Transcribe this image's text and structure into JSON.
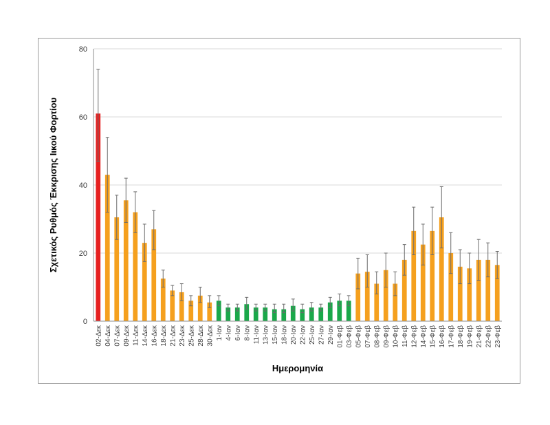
{
  "chart_data": {
    "type": "bar",
    "xlabel": "Ημερομηνία",
    "ylabel": "Σχετικός Ρυθμός Έκκρισης Ιικού Φορτίου",
    "ylim": [
      0,
      80
    ],
    "yticks": [
      0,
      20,
      40,
      60,
      80
    ],
    "grid": true,
    "legend": "none",
    "colors": {
      "red": "#e62020",
      "orange": "#f5a01e",
      "green": "#1aa84a"
    },
    "categories": [
      "02-Δεκ",
      "04-Δεκ",
      "07-Δεκ",
      "09-Δεκ",
      "11-Δεκ",
      "14-Δεκ",
      "16-Δεκ",
      "18-Δεκ",
      "21-Δεκ",
      "23-Δεκ",
      "25-Δεκ",
      "28-Δεκ",
      "30-Δεκ",
      "1-Ιαν",
      "4-Ιαν",
      "6-Ιαν",
      "8-Ιαν",
      "11-Ιαν",
      "13-Ιαν",
      "15-Ιαν",
      "18-Ιαν",
      "20-Ιαν",
      "22-Ιαν",
      "25-Ιαν",
      "27-Ιαν",
      "29-Ιαν",
      "01-Φεβ",
      "03-Φεβ",
      "05-Φεβ",
      "07-Φεβ",
      "08-Φεβ",
      "09-Φεβ",
      "10-Φεβ",
      "11-Φεβ",
      "12-Φεβ",
      "14-Φεβ",
      "15-Φεβ",
      "16-Φεβ",
      "17-Φεβ",
      "18-Φεβ",
      "19-Φεβ",
      "21-Φεβ",
      "22-Φεβ",
      "23-Φεβ"
    ],
    "values": [
      61,
      43,
      30.5,
      35.5,
      32,
      23,
      27,
      12.5,
      9,
      8.5,
      6,
      7.5,
      5.5,
      6,
      4,
      4,
      5,
      4,
      4,
      3.5,
      3.5,
      4.5,
      3.5,
      4,
      4,
      5.5,
      6,
      6,
      14,
      14.5,
      11,
      15,
      11,
      18,
      26.5,
      22.5,
      26.5,
      30.5,
      20,
      16,
      15.5,
      18,
      18,
      16.5
    ],
    "error_high": [
      74,
      54,
      37,
      42,
      38,
      28.5,
      32.5,
      15,
      10.5,
      11,
      7.5,
      10,
      7.5,
      7.5,
      5,
      5,
      7,
      5,
      5,
      5,
      5,
      6.5,
      5,
      5.5,
      5,
      7,
      8,
      7.5,
      18.5,
      19.5,
      14.5,
      20,
      14.5,
      22.5,
      33.5,
      28.5,
      33.5,
      39.5,
      26,
      21,
      20,
      24,
      23,
      20.5
    ],
    "error_low": [
      47,
      32,
      24,
      29,
      26,
      17.5,
      21,
      10,
      7.5,
      6,
      4.5,
      5.5,
      4,
      4.5,
      3,
      3,
      3.5,
      3,
      3,
      2.5,
      2.5,
      3,
      2.5,
      3,
      3,
      4,
      4.5,
      4.5,
      9.5,
      10,
      8,
      10,
      7.5,
      13.5,
      19.5,
      16.5,
      19.5,
      21.5,
      14,
      11,
      11,
      12,
      13,
      12.5
    ],
    "bar_colors": [
      "red",
      "orange",
      "orange",
      "orange",
      "orange",
      "orange",
      "orange",
      "orange",
      "orange",
      "orange",
      "orange",
      "orange",
      "orange",
      "green",
      "green",
      "green",
      "green",
      "green",
      "green",
      "green",
      "green",
      "green",
      "green",
      "green",
      "green",
      "green",
      "green",
      "green",
      "orange",
      "orange",
      "orange",
      "orange",
      "orange",
      "orange",
      "orange",
      "orange",
      "orange",
      "orange",
      "orange",
      "orange",
      "orange",
      "orange",
      "orange",
      "orange"
    ]
  }
}
